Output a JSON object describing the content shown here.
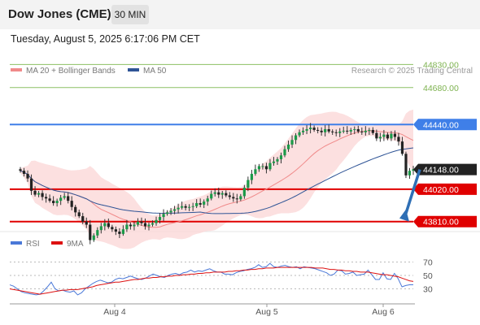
{
  "header": {
    "title": "Dow Jones (CME)",
    "timeframe": "30 MIN"
  },
  "datetime": "Tuesday, August 5, 2025 6:17:06 PM CET",
  "chart_data": [
    {
      "type": "candlestick",
      "title": "Dow Jones (CME)",
      "legend": [
        {
          "label": "MA 20 + Bollinger Bands",
          "color": "#f08a8a"
        },
        {
          "label": "MA 50",
          "color": "#2f5496"
        }
      ],
      "credit": "Research © 2025 Trading Central",
      "y_range": [
        43740,
        44890
      ],
      "x_labels": [
        "Aug 4",
        "Aug 5",
        "Aug 6"
      ],
      "last_price": {
        "value": "44148.00",
        "color": "#222222"
      },
      "levels": [
        {
          "value": 44830,
          "label": "44830.00",
          "kind": "target",
          "color": "#8cc063"
        },
        {
          "value": 44680,
          "label": "44680.00",
          "kind": "target",
          "color": "#8cc063"
        },
        {
          "value": 44440,
          "label": "44440.00",
          "kind": "pivot",
          "color": "#3f7fe8"
        },
        {
          "value": 44020,
          "label": "44020.00",
          "kind": "support",
          "color": "#e00000"
        },
        {
          "value": 43810,
          "label": "43810.00",
          "kind": "support",
          "color": "#e00000"
        }
      ],
      "closes": [
        44140,
        44120,
        44090,
        44010,
        43985,
        43995,
        43970,
        43960,
        43945,
        43930,
        43945,
        43965,
        43975,
        43945,
        43905,
        43870,
        43845,
        43810,
        43790,
        43690,
        43720,
        43755,
        43780,
        43800,
        43775,
        43760,
        43745,
        43730,
        43760,
        43790,
        43780,
        43790,
        43810,
        43800,
        43780,
        43790,
        43800,
        43820,
        43840,
        43860,
        43870,
        43880,
        43890,
        43900,
        43910,
        43900,
        43905,
        43910,
        43930,
        43920,
        43940,
        43960,
        43990,
        44000,
        43985,
        43995,
        43980,
        43970,
        43960,
        43955,
        43975,
        44030,
        44080,
        44120,
        44150,
        44170,
        44170,
        44150,
        44190,
        44200,
        44215,
        44240,
        44280,
        44310,
        44340,
        44370,
        44390,
        44400,
        44410,
        44420,
        44405,
        44400,
        44390,
        44410,
        44395,
        44390,
        44385,
        44395,
        44400,
        44395,
        44405,
        44410,
        44395,
        44390,
        44400,
        44405,
        44385,
        44350,
        44360,
        44375,
        44350,
        44380,
        44360,
        44330,
        44250,
        44110,
        44140,
        44150
      ]
    },
    {
      "type": "line",
      "title": "RSI",
      "y_ticks": [
        70,
        50,
        30
      ],
      "y_range": [
        10,
        90
      ],
      "series": [
        {
          "name": "RSI",
          "color": "#4a78d8",
          "values": [
            36,
            34,
            30,
            26,
            24,
            23,
            22,
            21,
            22,
            27,
            33,
            40,
            30,
            27,
            28,
            26,
            25,
            27,
            21,
            24,
            30,
            34,
            38,
            41,
            43,
            41,
            39,
            40,
            44,
            46,
            45,
            47,
            49,
            47,
            45,
            44,
            46,
            49,
            52,
            50,
            48,
            47,
            50,
            52,
            53,
            51,
            54,
            55,
            58,
            55,
            57,
            56,
            58,
            60,
            57,
            55,
            55,
            52,
            52,
            51,
            54,
            56,
            57,
            59,
            60,
            62,
            66,
            62,
            63,
            68,
            63,
            62,
            64,
            65,
            63,
            62,
            63,
            60,
            63,
            62,
            61,
            60,
            58,
            56,
            54,
            50,
            52,
            58,
            57,
            52,
            53,
            55,
            50,
            51,
            52,
            58,
            51,
            44,
            44,
            54,
            45,
            44,
            53,
            45,
            33,
            35,
            36,
            36
          ]
        },
        {
          "name": "9MA",
          "color": "#dd1111",
          "values": [
            30,
            29,
            28,
            27,
            26,
            25,
            24,
            23,
            22,
            23,
            24,
            25,
            26,
            27,
            28,
            28,
            29,
            29,
            29,
            30,
            31,
            32,
            33,
            35,
            36,
            37,
            38,
            39,
            40,
            40,
            41,
            42,
            43,
            44,
            44,
            45,
            46,
            46,
            47,
            47,
            48,
            48,
            49,
            49,
            50,
            50,
            51,
            51,
            52,
            52,
            53,
            53,
            54,
            54,
            55,
            55,
            55,
            55,
            56,
            56,
            57,
            57,
            58,
            58,
            59,
            59,
            60,
            60,
            61,
            61,
            61,
            62,
            62,
            62,
            62,
            62,
            62,
            62,
            62,
            62,
            62,
            61,
            61,
            61,
            60,
            59,
            59,
            58,
            58,
            57,
            57,
            56,
            56,
            55,
            55,
            55,
            54,
            53,
            52,
            51,
            51,
            50,
            49,
            48,
            46,
            44,
            42,
            41
          ]
        }
      ]
    }
  ]
}
